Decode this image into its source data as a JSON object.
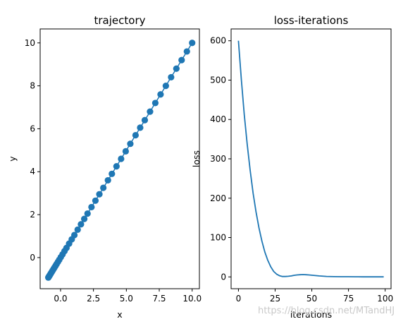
{
  "watermark": "https://blog.csdn.net/MTandHJ",
  "chart_data": [
    {
      "type": "scatter",
      "title": "trajectory",
      "xlabel": "x",
      "ylabel": "y",
      "xlim": [
        -1.55,
        10.55
      ],
      "ylim": [
        -1.45,
        10.65
      ],
      "xticks": [
        0,
        2.5,
        5,
        7.5,
        10
      ],
      "xtick_labels": [
        "0.0",
        "2.5",
        "5.0",
        "7.5",
        "10.0"
      ],
      "yticks": [
        0,
        2,
        4,
        6,
        8,
        10
      ],
      "ytick_labels": [
        "0",
        "2",
        "4",
        "6",
        "8",
        "10"
      ],
      "marker_color": "#1f77b4",
      "line": true,
      "x": [
        10.0,
        9.6,
        9.2,
        8.8,
        8.4,
        8.0,
        7.6,
        7.2,
        6.8,
        6.4,
        6.05,
        5.7,
        5.3,
        4.95,
        4.6,
        4.25,
        3.9,
        3.6,
        3.25,
        2.95,
        2.65,
        2.35,
        2.05,
        1.8,
        1.55,
        1.3,
        1.05,
        0.85,
        0.65,
        0.45,
        0.3,
        0.15,
        0.02,
        -0.1,
        -0.2,
        -0.3,
        -0.38,
        -0.46,
        -0.53,
        -0.6,
        -0.66,
        -0.72,
        -0.76,
        -0.8,
        -0.84,
        -0.87,
        -0.9,
        -0.93
      ],
      "y": [
        10.0,
        9.6,
        9.2,
        8.8,
        8.4,
        8.0,
        7.6,
        7.2,
        6.8,
        6.4,
        6.05,
        5.7,
        5.3,
        4.95,
        4.6,
        4.25,
        3.9,
        3.6,
        3.25,
        2.95,
        2.65,
        2.35,
        2.05,
        1.8,
        1.55,
        1.3,
        1.05,
        0.85,
        0.65,
        0.45,
        0.3,
        0.15,
        0.02,
        -0.1,
        -0.2,
        -0.3,
        -0.38,
        -0.46,
        -0.53,
        -0.6,
        -0.66,
        -0.72,
        -0.76,
        -0.8,
        -0.84,
        -0.87,
        -0.9,
        -0.93
      ]
    },
    {
      "type": "line",
      "title": "loss-iterations",
      "xlabel": "iterations",
      "ylabel": "loss",
      "xlim": [
        -5,
        104
      ],
      "ylim": [
        -30,
        630
      ],
      "xticks": [
        0,
        25,
        50,
        75,
        100
      ],
      "xtick_labels": [
        "0",
        "25",
        "50",
        "75",
        "100"
      ],
      "yticks": [
        0,
        100,
        200,
        300,
        400,
        500,
        600
      ],
      "ytick_labels": [
        "0",
        "100",
        "200",
        "300",
        "400",
        "500",
        "600"
      ],
      "line_color": "#1f77b4",
      "x": [
        0,
        2,
        4,
        6,
        8,
        10,
        12,
        14,
        16,
        18,
        20,
        22,
        24,
        26,
        28,
        30,
        32,
        34,
        36,
        38,
        40,
        42,
        44,
        46,
        48,
        50,
        55,
        60,
        65,
        70,
        75,
        80,
        85,
        90,
        95,
        99
      ],
      "y": [
        600,
        500,
        412,
        336,
        270,
        213,
        165,
        124,
        91,
        63,
        42,
        26,
        14,
        7,
        3,
        1,
        1,
        1.5,
        2.5,
        4,
        5,
        5.5,
        5.8,
        5.5,
        5,
        4.2,
        2.5,
        1.2,
        0.6,
        0.4,
        0.4,
        0.3,
        0.2,
        0.2,
        0.2,
        0.2
      ]
    }
  ]
}
